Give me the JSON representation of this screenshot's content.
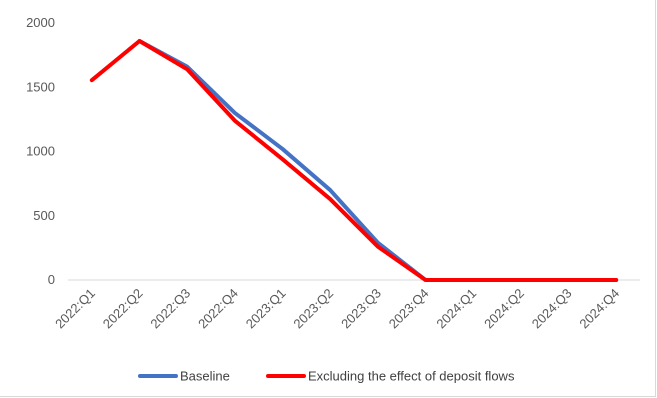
{
  "chart_data": {
    "type": "line",
    "categories": [
      "2022:Q1",
      "2022:Q2",
      "2022:Q3",
      "2022:Q4",
      "2023:Q1",
      "2023:Q2",
      "2023:Q3",
      "2023:Q4",
      "2024:Q1",
      "2024:Q2",
      "2024:Q3",
      "2024:Q4"
    ],
    "series": [
      {
        "name": "Baseline",
        "color": "#4472c4",
        "values": [
          null,
          1860,
          1660,
          1300,
          1020,
          700,
          290,
          0,
          0,
          0,
          0,
          0
        ]
      },
      {
        "name": "Excluding the effect of deposit flows",
        "color": "#ff0000",
        "values": [
          1555,
          1860,
          1640,
          1240,
          940,
          630,
          260,
          0,
          0,
          0,
          0,
          0
        ]
      }
    ],
    "ylim": [
      0,
      2000
    ],
    "yticks": [
      0,
      500,
      1000,
      1500,
      2000
    ],
    "title": "",
    "xlabel": "",
    "ylabel": "",
    "grid": false,
    "legend": "bottom"
  }
}
